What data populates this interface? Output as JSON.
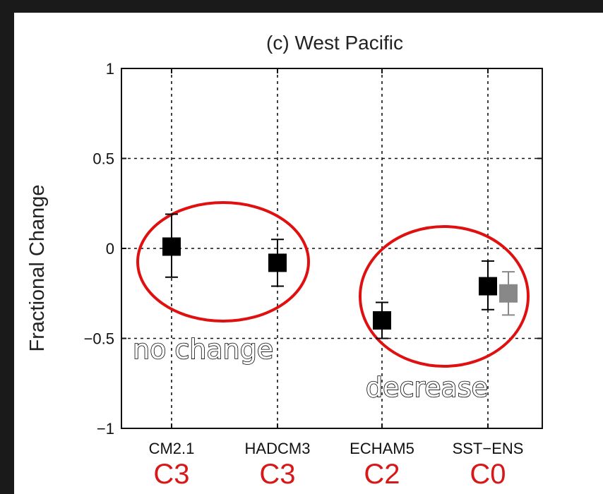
{
  "chart_data": {
    "type": "scatter",
    "title": "(c) West Pacific",
    "ylabel": "Fractional Change",
    "xlabel": "",
    "ylim": [
      -1,
      1
    ],
    "yticks": [
      -1,
      -0.5,
      0,
      0.5,
      1
    ],
    "ytick_labels": [
      "−1",
      "−0.5",
      "0",
      "0.5",
      "1"
    ],
    "grid": true,
    "categories": [
      "CM2.1",
      "HADCM3",
      "ECHAM5",
      "SST−ENS"
    ],
    "category_codes": [
      "C3",
      "C3",
      "C2",
      "C0"
    ],
    "series": [
      {
        "color": "#000000",
        "points": [
          {
            "category": "CM2.1",
            "y": 0.01,
            "err_low": -0.16,
            "err_high": 0.19
          },
          {
            "category": "HADCM3",
            "y": -0.08,
            "err_low": -0.21,
            "err_high": 0.05
          },
          {
            "category": "ECHAM5",
            "y": -0.4,
            "err_low": -0.5,
            "err_high": -0.3
          },
          {
            "category": "SST−ENS",
            "y": -0.21,
            "err_low": -0.34,
            "err_high": -0.07
          }
        ]
      },
      {
        "color": "#888888",
        "points": [
          {
            "category": "SST−ENS",
            "y": -0.25,
            "err_low": -0.37,
            "err_high": -0.13
          }
        ]
      }
    ],
    "annotations": [
      {
        "text": "no change"
      },
      {
        "text": "decrease"
      }
    ]
  }
}
